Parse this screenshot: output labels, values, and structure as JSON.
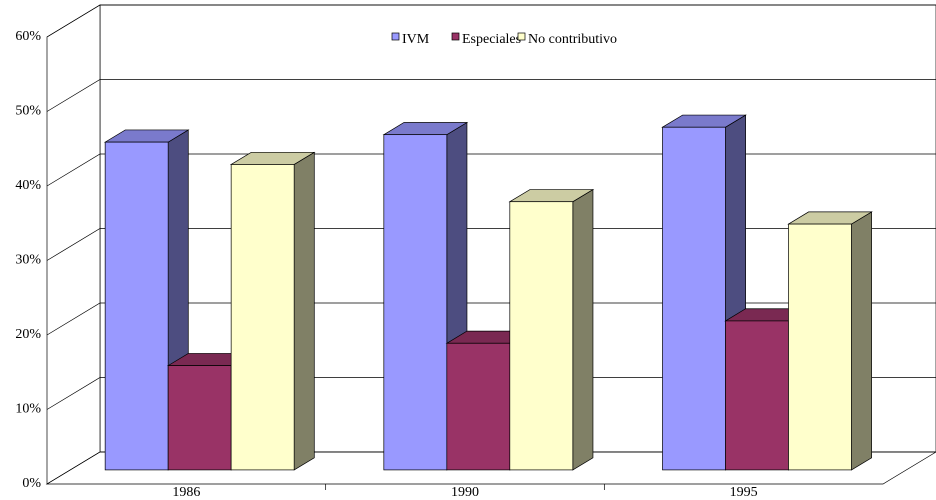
{
  "chart_data": {
    "type": "bar3d",
    "categories": [
      "1986",
      "1990",
      "1995"
    ],
    "series": [
      {
        "name": "IVM",
        "color": "#9999ff",
        "values": [
          44,
          45,
          46
        ]
      },
      {
        "name": "Especiales",
        "color": "#993366",
        "values": [
          14,
          17,
          20
        ]
      },
      {
        "name": "No contributivo",
        "color": "#ffffcc",
        "values": [
          41,
          36,
          33
        ]
      }
    ],
    "ylim": [
      0,
      60
    ],
    "yticks": [
      {
        "value": 0,
        "label": "0%"
      },
      {
        "value": 10,
        "label": "10%"
      },
      {
        "value": 20,
        "label": "20%"
      },
      {
        "value": 30,
        "label": "30%"
      },
      {
        "value": 40,
        "label": "40%"
      },
      {
        "value": 50,
        "label": "50%"
      },
      {
        "value": 60,
        "label": "60%"
      }
    ],
    "grid": true,
    "legend": "top"
  }
}
